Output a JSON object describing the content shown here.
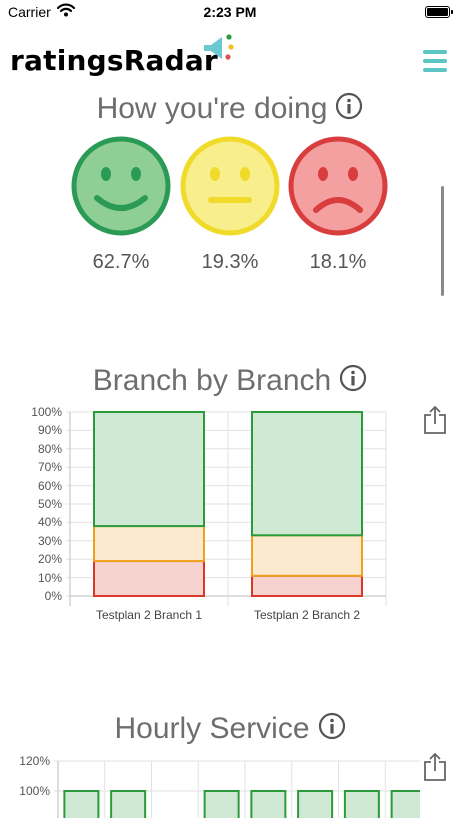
{
  "status_bar": {
    "carrier": "Carrier",
    "time": "2:23 PM"
  },
  "header": {
    "app_name": "ratingsRadar"
  },
  "summary": {
    "title": "How you're doing",
    "ratings": [
      {
        "sentiment": "happy",
        "percent": "62.7%",
        "color": "#7fc58a"
      },
      {
        "sentiment": "neutral",
        "percent": "19.3%",
        "color": "#f5ea7a"
      },
      {
        "sentiment": "sad",
        "percent": "18.1%",
        "color": "#f39a9a"
      }
    ]
  },
  "branch_chart": {
    "title": "Branch by Branch",
    "chart_data": {
      "type": "bar",
      "stacked": true,
      "categories": [
        "Testplan 2 Branch 1",
        "Testplan 2 Branch 2"
      ],
      "series": [
        {
          "color": "#d9372a",
          "values": [
            19,
            11
          ]
        },
        {
          "color": "#f0a020",
          "values": [
            19,
            22
          ]
        },
        {
          "color": "#2a9a3a",
          "values": [
            62,
            67
          ]
        }
      ],
      "yticks": [
        "0%",
        "10%",
        "20%",
        "30%",
        "40%",
        "50%",
        "60%",
        "70%",
        "80%",
        "90%",
        "100%"
      ],
      "ylim": [
        0,
        100
      ],
      "grid": true
    }
  },
  "hourly_chart": {
    "title": "Hourly Service",
    "chart_data": {
      "type": "bar",
      "yticks": [
        "100%",
        "120%"
      ],
      "ylim": [
        0,
        120
      ],
      "values": [
        100,
        100,
        null,
        100,
        100,
        100,
        100,
        100
      ],
      "color": "#2a9a3a",
      "grid": true
    }
  }
}
